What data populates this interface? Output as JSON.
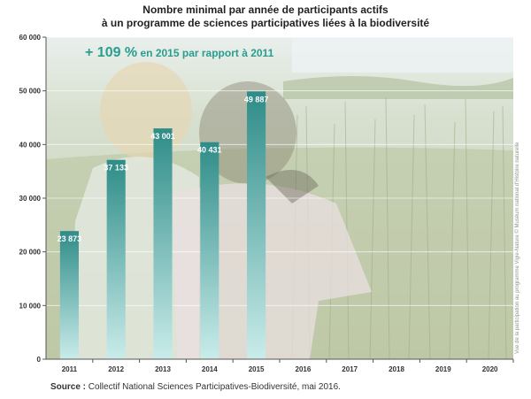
{
  "title": {
    "line1": "Nombre minimal par année de participants actifs",
    "line2": "à un programme de sciences participatives liées à la biodiversité"
  },
  "annotation": {
    "big": "+ 109 %",
    "rest": " en 2015 par rapport à 2011",
    "color": "#2a9d8f"
  },
  "photo_credit": "Vue de la participation au programme Vigie-Nature © Muséum national d'Histoire naturelle",
  "source": {
    "label": "Source :",
    "text": " Collectif National Sciences Participatives-Biodiversité, mai 2016."
  },
  "colors": {
    "bar_top": "#2e8c88",
    "bar_bottom": "#c9ecea",
    "label_text": "#ffffff",
    "axis": "#555555",
    "grid": "#ffffff"
  },
  "chart_data": {
    "type": "bar",
    "categories": [
      "2011",
      "2012",
      "2013",
      "2014",
      "2015",
      "2016",
      "2017",
      "2018",
      "2019",
      "2020"
    ],
    "values": [
      23873,
      37133,
      43001,
      40431,
      49887,
      null,
      null,
      null,
      null,
      null
    ],
    "data_labels": [
      "23 873",
      "37 133",
      "43 001",
      "40 431",
      "49 887",
      "",
      "",
      "",
      "",
      ""
    ],
    "yticks": [
      0,
      10000,
      20000,
      30000,
      40000,
      50000,
      60000
    ],
    "ytick_labels": [
      "0",
      "10 000",
      "20 000",
      "30 000",
      "40 000",
      "50 000",
      "60 000"
    ],
    "ylim": [
      0,
      60000
    ],
    "grid": true
  }
}
